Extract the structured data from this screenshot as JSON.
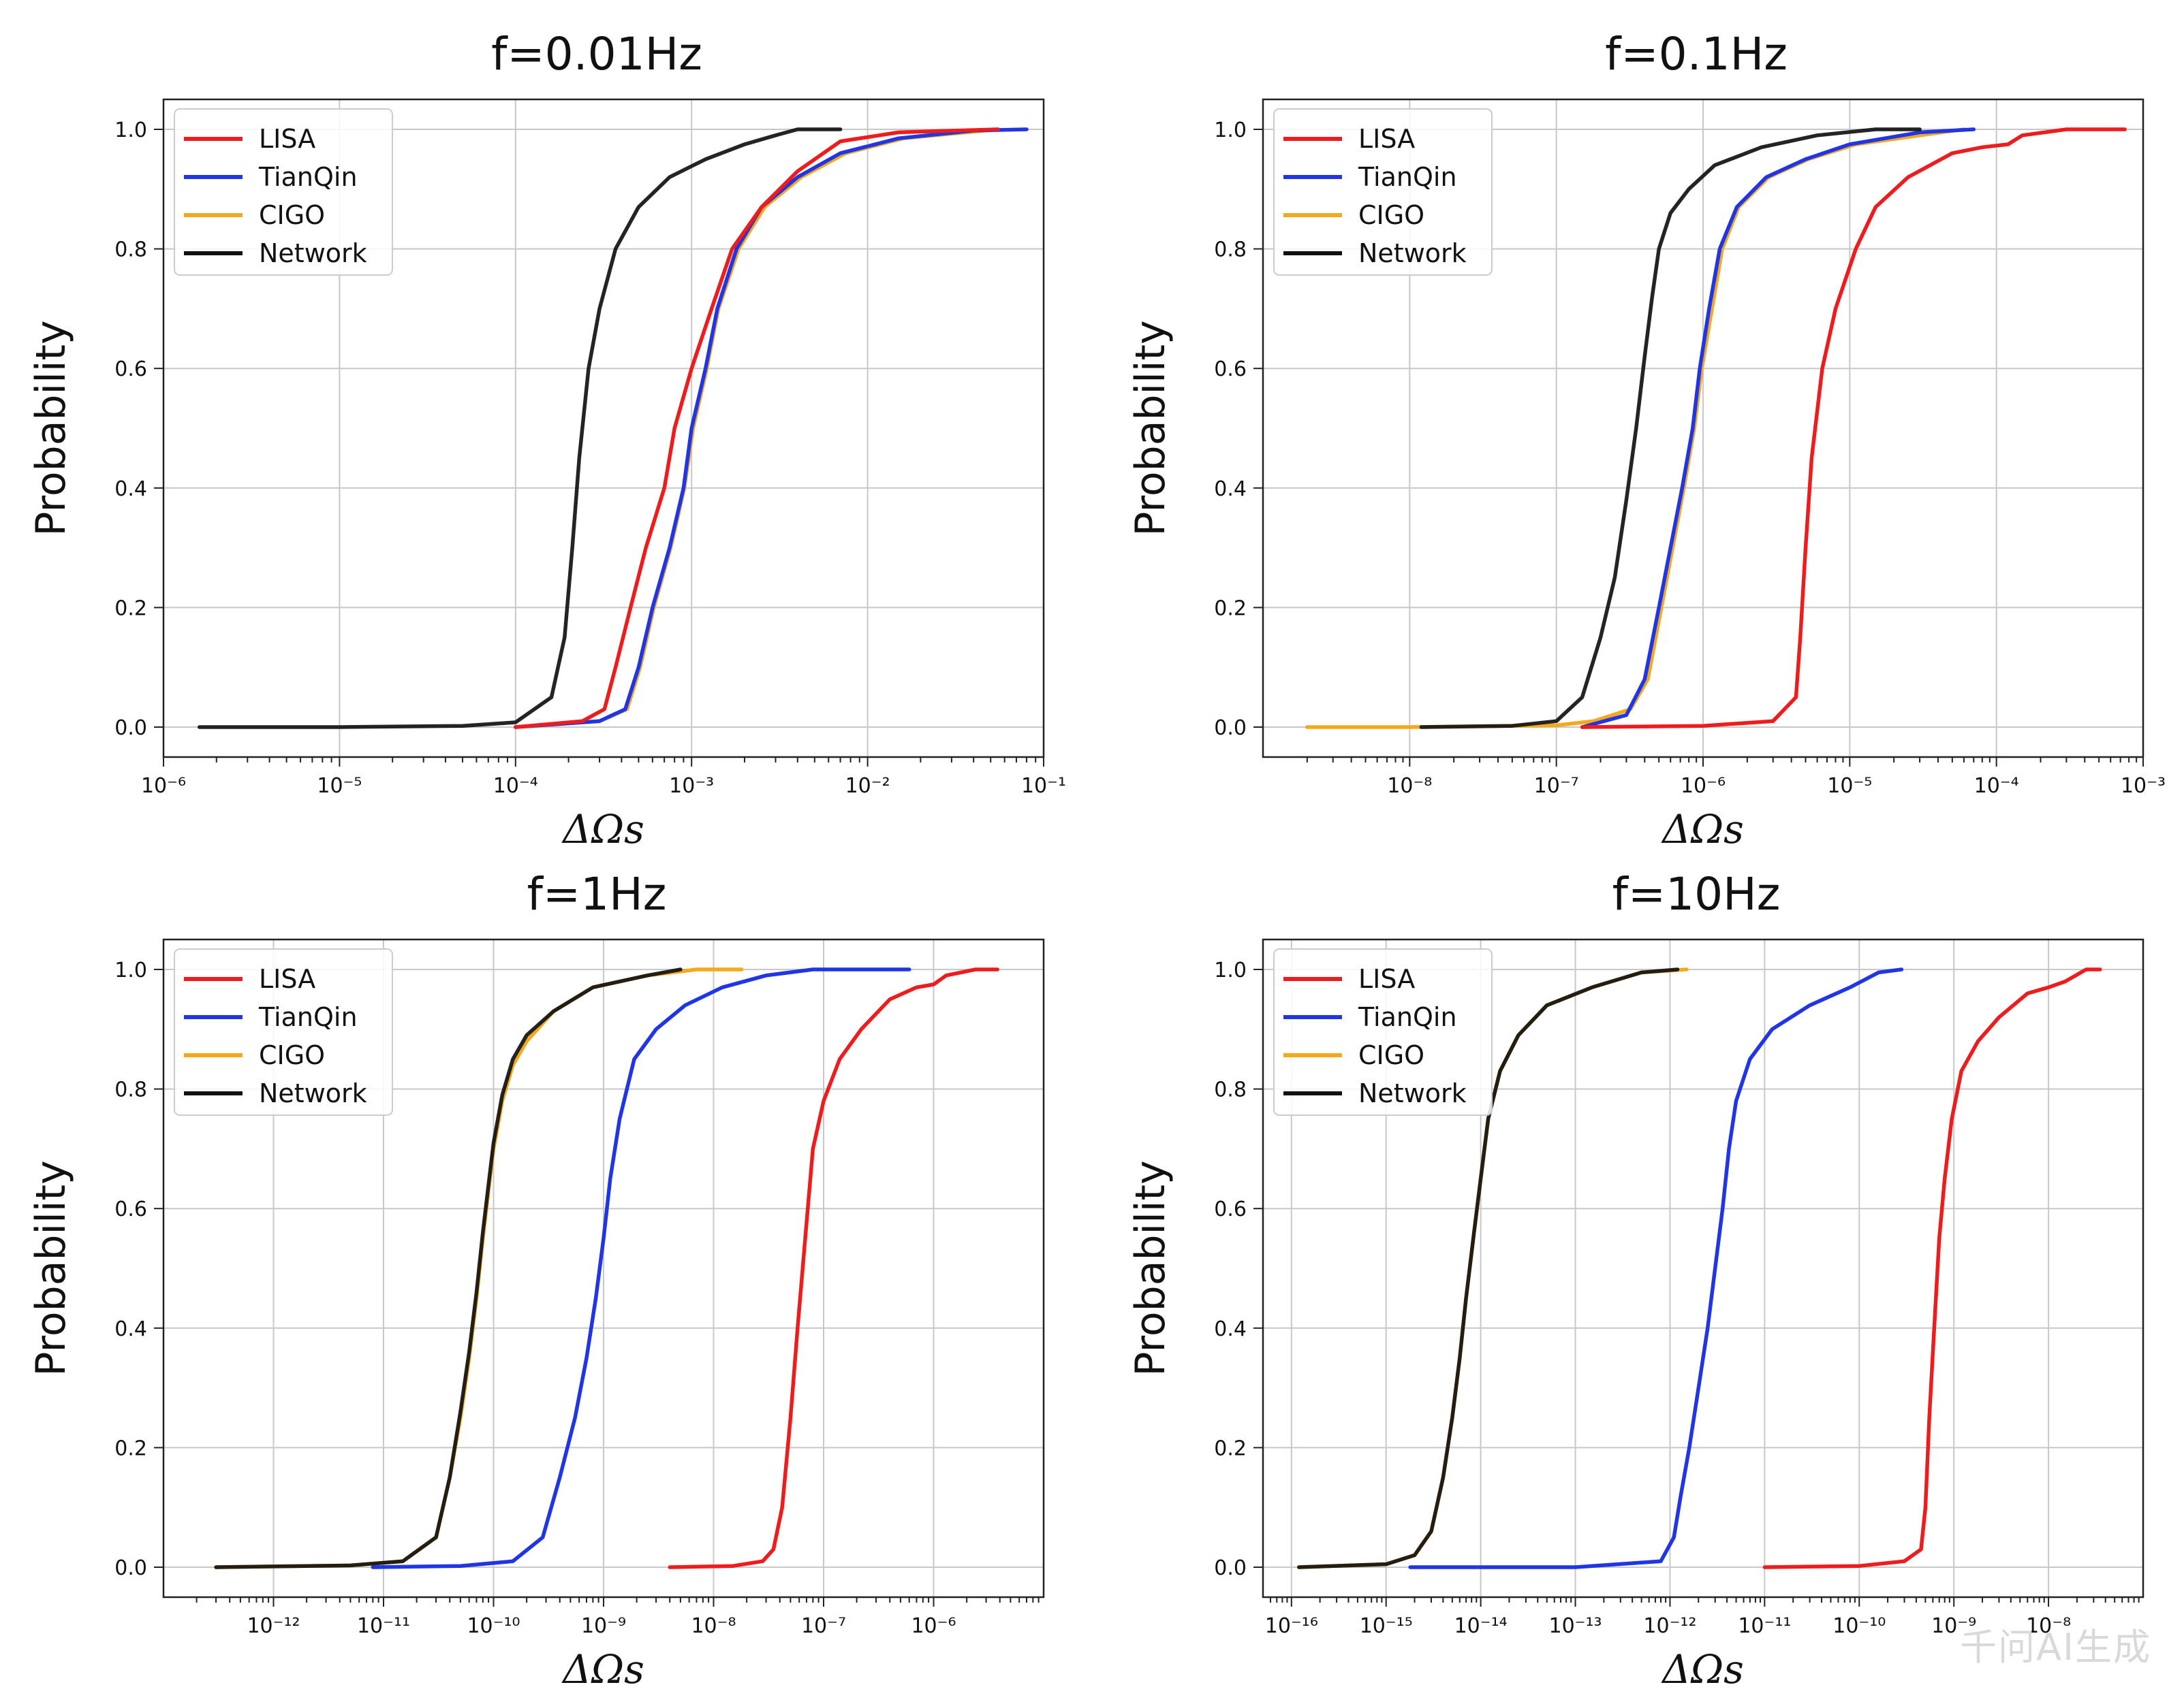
{
  "watermark": "千问AI生成",
  "colors": {
    "LISA": "#ee1c1c",
    "TianQin": "#1f35e6",
    "CIGO": "#f5a81c",
    "Network": "#111111"
  },
  "chart_data": [
    {
      "type": "line",
      "title": "f=0.01Hz",
      "xlabel": "ΔΩs",
      "ylabel": "Probability",
      "xscale": "log",
      "xlim": [
        1e-06,
        0.1
      ],
      "ylim": [
        0,
        1
      ],
      "xticks": [
        1e-06,
        1e-05,
        0.0001,
        0.001,
        0.01,
        0.1
      ],
      "xtick_labels": [
        "10⁻⁶",
        "10⁻⁵",
        "10⁻⁴",
        "10⁻³",
        "10⁻²",
        "10⁻¹"
      ],
      "yticks": [
        0.0,
        0.2,
        0.4,
        0.6,
        0.8,
        1.0
      ],
      "ytick_labels": [
        "0.0",
        "0.2",
        "0.4",
        "0.6",
        "0.8",
        "1.0"
      ],
      "grid": true,
      "legend": "top-left",
      "series": [
        {
          "name": "LISA",
          "x": [
            0.0001,
            0.00024,
            0.00032,
            0.00037,
            0.00045,
            0.00055,
            0.0007,
            0.0008,
            0.001,
            0.0013,
            0.0017,
            0.0025,
            0.004,
            0.007,
            0.015,
            0.055
          ],
          "y": [
            0,
            0.01,
            0.03,
            0.1,
            0.2,
            0.3,
            0.4,
            0.5,
            0.6,
            0.7,
            0.8,
            0.87,
            0.93,
            0.98,
            0.995,
            1.0
          ]
        },
        {
          "name": "TianQin",
          "x": [
            0.0001,
            0.0003,
            0.00042,
            0.0005,
            0.0006,
            0.00075,
            0.0009,
            0.001,
            0.0012,
            0.0014,
            0.0018,
            0.0025,
            0.004,
            0.007,
            0.015,
            0.04,
            0.08
          ],
          "y": [
            0,
            0.01,
            0.03,
            0.1,
            0.2,
            0.3,
            0.4,
            0.5,
            0.6,
            0.7,
            0.8,
            0.87,
            0.92,
            0.96,
            0.985,
            0.998,
            1.0
          ]
        },
        {
          "name": "CIGO",
          "x": [
            0.0001,
            0.0003,
            0.00043,
            0.00051,
            0.00061,
            0.00076,
            0.00091,
            0.00102,
            0.00122,
            0.00142,
            0.00185,
            0.0026,
            0.0042,
            0.0075,
            0.016,
            0.055
          ],
          "y": [
            0,
            0.01,
            0.03,
            0.1,
            0.2,
            0.3,
            0.4,
            0.5,
            0.6,
            0.7,
            0.8,
            0.87,
            0.92,
            0.96,
            0.985,
            1.0
          ]
        },
        {
          "name": "Network",
          "x": [
            1.6e-06,
            1e-05,
            5e-05,
            0.0001,
            0.00016,
            0.00019,
            0.00021,
            0.00023,
            0.00026,
            0.0003,
            0.00037,
            0.0005,
            0.00075,
            0.0012,
            0.002,
            0.003,
            0.004,
            0.007
          ],
          "y": [
            0,
            0,
            0.002,
            0.008,
            0.05,
            0.15,
            0.3,
            0.45,
            0.6,
            0.7,
            0.8,
            0.87,
            0.92,
            0.95,
            0.975,
            0.99,
            1.0,
            1.0
          ]
        }
      ]
    },
    {
      "type": "line",
      "title": "f=0.1Hz",
      "xlabel": "ΔΩs",
      "ylabel": "Probability",
      "xscale": "log",
      "xlim": [
        1e-09,
        0.001
      ],
      "ylim": [
        0,
        1
      ],
      "xticks": [
        1e-08,
        1e-07,
        1e-06,
        1e-05,
        0.0001,
        0.001
      ],
      "xtick_labels": [
        "10⁻⁸",
        "10⁻⁷",
        "10⁻⁶",
        "10⁻⁵",
        "10⁻⁴",
        "10⁻³"
      ],
      "yticks": [
        0.0,
        0.2,
        0.4,
        0.6,
        0.8,
        1.0
      ],
      "ytick_labels": [
        "0.0",
        "0.2",
        "0.4",
        "0.6",
        "0.8",
        "1.0"
      ],
      "grid": true,
      "legend": "top-left",
      "series": [
        {
          "name": "LISA",
          "x": [
            1.5e-07,
            1e-06,
            3e-06,
            4.3e-06,
            4.6e-06,
            5e-06,
            5.5e-06,
            6.5e-06,
            8e-06,
            1.1e-05,
            1.5e-05,
            2.5e-05,
            5e-05,
            8e-05,
            0.00012,
            0.00015,
            0.0003,
            0.00075
          ],
          "y": [
            0,
            0.002,
            0.01,
            0.05,
            0.15,
            0.3,
            0.45,
            0.6,
            0.7,
            0.8,
            0.87,
            0.92,
            0.96,
            0.97,
            0.975,
            0.99,
            1.0,
            1.0
          ]
        },
        {
          "name": "TianQin",
          "x": [
            1.5e-07,
            3e-07,
            4e-07,
            5e-07,
            6e-07,
            7.2e-07,
            8.5e-07,
            9.5e-07,
            1.1e-06,
            1.3e-06,
            1.7e-06,
            2.7e-06,
            5e-06,
            1e-05,
            3e-05,
            7e-05
          ],
          "y": [
            0,
            0.02,
            0.08,
            0.2,
            0.3,
            0.4,
            0.5,
            0.6,
            0.7,
            0.8,
            0.87,
            0.92,
            0.95,
            0.975,
            0.995,
            1.0
          ]
        },
        {
          "name": "CIGO",
          "x": [
            2e-09,
            1e-08,
            1e-07,
            1.8e-07,
            3.2e-07,
            4.2e-07,
            5.2e-07,
            6.2e-07,
            7.4e-07,
            8.7e-07,
            9.8e-07,
            1.15e-06,
            1.35e-06,
            1.75e-06,
            2.8e-06,
            5.2e-06,
            1.1e-05,
            3e-05,
            6e-05
          ],
          "y": [
            0,
            0,
            0.003,
            0.01,
            0.03,
            0.08,
            0.2,
            0.3,
            0.4,
            0.5,
            0.6,
            0.7,
            0.8,
            0.87,
            0.92,
            0.95,
            0.975,
            0.99,
            1.0
          ]
        },
        {
          "name": "Network",
          "x": [
            1.2e-08,
            5e-08,
            1e-07,
            1.5e-07,
            2e-07,
            2.5e-07,
            3e-07,
            3.5e-07,
            4e-07,
            4.5e-07,
            5e-07,
            6e-07,
            8e-07,
            1.2e-06,
            2.5e-06,
            6e-06,
            1.5e-05,
            3e-05
          ],
          "y": [
            0,
            0.002,
            0.01,
            0.05,
            0.15,
            0.25,
            0.38,
            0.5,
            0.62,
            0.72,
            0.8,
            0.86,
            0.9,
            0.94,
            0.97,
            0.99,
            1.0,
            1.0
          ]
        }
      ]
    },
    {
      "type": "line",
      "title": "f=1Hz",
      "xlabel": "ΔΩs",
      "ylabel": "Probability",
      "xscale": "log",
      "xlim": [
        1e-13,
        1e-05
      ],
      "ylim": [
        0,
        1
      ],
      "xticks": [
        1e-12,
        1e-11,
        1e-10,
        1e-09,
        1e-08,
        1e-07,
        1e-06
      ],
      "xtick_labels": [
        "10⁻¹²",
        "10⁻¹¹",
        "10⁻¹⁰",
        "10⁻⁹",
        "10⁻⁸",
        "10⁻⁷",
        "10⁻⁶"
      ],
      "yticks": [
        0.0,
        0.2,
        0.4,
        0.6,
        0.8,
        1.0
      ],
      "ytick_labels": [
        "0.0",
        "0.2",
        "0.4",
        "0.6",
        "0.8",
        "1.0"
      ],
      "grid": true,
      "legend": "top-left",
      "series": [
        {
          "name": "LISA",
          "x": [
            4e-09,
            1.5e-08,
            2.8e-08,
            3.5e-08,
            4.2e-08,
            5e-08,
            5.8e-08,
            6.8e-08,
            8e-08,
            1e-07,
            1.4e-07,
            2.2e-07,
            4e-07,
            7e-07,
            1e-06,
            1.3e-06,
            2.4e-06,
            3.8e-06
          ],
          "y": [
            0,
            0.002,
            0.01,
            0.03,
            0.1,
            0.25,
            0.4,
            0.55,
            0.7,
            0.78,
            0.85,
            0.9,
            0.95,
            0.97,
            0.975,
            0.99,
            1.0,
            1.0
          ]
        },
        {
          "name": "TianQin",
          "x": [
            8e-12,
            5e-11,
            1.5e-10,
            2.8e-10,
            4e-10,
            5.5e-10,
            7e-10,
            8.5e-10,
            1e-09,
            1.15e-09,
            1.4e-09,
            1.9e-09,
            3e-09,
            5.5e-09,
            1.2e-08,
            3e-08,
            8e-08,
            6e-07
          ],
          "y": [
            0,
            0.002,
            0.01,
            0.05,
            0.15,
            0.25,
            0.35,
            0.45,
            0.55,
            0.65,
            0.75,
            0.85,
            0.9,
            0.94,
            0.97,
            0.99,
            1.0,
            1.0
          ]
        },
        {
          "name": "CIGO",
          "x": [
            3e-13,
            5e-12,
            1.5e-11,
            3e-11,
            4e-11,
            5e-11,
            6e-11,
            7e-11,
            8e-11,
            9e-11,
            1e-10,
            1.2e-10,
            1.5e-10,
            2e-10,
            3.5e-10,
            8e-10,
            2.5e-09,
            7e-09,
            1.8e-08
          ],
          "y": [
            0,
            0.003,
            0.01,
            0.05,
            0.15,
            0.25,
            0.35,
            0.45,
            0.55,
            0.63,
            0.7,
            0.78,
            0.84,
            0.88,
            0.93,
            0.97,
            0.99,
            1.0,
            1.0
          ]
        },
        {
          "name": "Network",
          "x": [
            3e-13,
            5e-12,
            1.5e-11,
            3e-11,
            4e-11,
            5e-11,
            6e-11,
            7e-11,
            8e-11,
            9e-11,
            1e-10,
            1.2e-10,
            1.5e-10,
            2e-10,
            3.5e-10,
            8e-10,
            2.5e-09,
            5e-09
          ],
          "y": [
            0,
            0.003,
            0.01,
            0.05,
            0.15,
            0.26,
            0.36,
            0.46,
            0.56,
            0.64,
            0.71,
            0.79,
            0.85,
            0.89,
            0.93,
            0.97,
            0.99,
            1.0
          ]
        }
      ]
    },
    {
      "type": "line",
      "title": "f=10Hz",
      "xlabel": "ΔΩs",
      "ylabel": "Probability",
      "xscale": "log",
      "xlim": [
        5e-17,
        1e-07
      ],
      "ylim": [
        0,
        1
      ],
      "xticks": [
        1e-16,
        1e-15,
        1e-14,
        1e-13,
        1e-12,
        1e-11,
        1e-10,
        1e-09,
        1e-08
      ],
      "xtick_labels": [
        "10⁻¹⁶",
        "10⁻¹⁵",
        "10⁻¹⁴",
        "10⁻¹³",
        "10⁻¹²",
        "10⁻¹¹",
        "10⁻¹⁰",
        "10⁻⁹",
        "10⁻⁸"
      ],
      "yticks": [
        0.0,
        0.2,
        0.4,
        0.6,
        0.8,
        1.0
      ],
      "ytick_labels": [
        "0.0",
        "0.2",
        "0.4",
        "0.6",
        "0.8",
        "1.0"
      ],
      "grid": true,
      "legend": "top-left",
      "series": [
        {
          "name": "LISA",
          "x": [
            1e-11,
            1e-10,
            3e-10,
            4.5e-10,
            5e-10,
            5.5e-10,
            6.2e-10,
            7e-10,
            8e-10,
            9.5e-10,
            1.2e-09,
            1.8e-09,
            3e-09,
            6e-09,
            1e-08,
            1.5e-08,
            2.5e-08,
            3.5e-08
          ],
          "y": [
            0,
            0.002,
            0.01,
            0.03,
            0.1,
            0.25,
            0.4,
            0.55,
            0.65,
            0.75,
            0.83,
            0.88,
            0.92,
            0.96,
            0.97,
            0.98,
            1.0,
            1.0
          ]
        },
        {
          "name": "TianQin",
          "x": [
            1.8e-15,
            1e-13,
            8e-13,
            1.1e-12,
            1.3e-12,
            1.6e-12,
            2e-12,
            2.5e-12,
            3e-12,
            3.6e-12,
            4.2e-12,
            5e-12,
            7e-12,
            1.2e-11,
            3e-11,
            8e-11,
            1.6e-10,
            2.8e-10
          ],
          "y": [
            0,
            0,
            0.01,
            0.05,
            0.12,
            0.2,
            0.3,
            0.4,
            0.5,
            0.6,
            0.7,
            0.78,
            0.85,
            0.9,
            0.94,
            0.97,
            0.995,
            1.0
          ]
        },
        {
          "name": "CIGO",
          "x": [
            1.2e-16,
            1e-15,
            2e-15,
            3e-15,
            4e-15,
            5e-15,
            6e-15,
            7e-15,
            8.5e-15,
            1e-14,
            1.2e-14,
            1.6e-14,
            2.5e-14,
            5e-14,
            1.5e-13,
            5e-13,
            1.5e-12
          ],
          "y": [
            0,
            0.005,
            0.02,
            0.06,
            0.15,
            0.25,
            0.35,
            0.45,
            0.56,
            0.65,
            0.75,
            0.83,
            0.89,
            0.94,
            0.97,
            0.995,
            1.0
          ]
        },
        {
          "name": "Network",
          "x": [
            1.2e-16,
            1e-15,
            2e-15,
            3e-15,
            4e-15,
            5e-15,
            6e-15,
            7e-15,
            8.5e-15,
            1e-14,
            1.2e-14,
            1.6e-14,
            2.5e-14,
            5e-14,
            1.5e-13,
            5e-13,
            1.2e-12
          ],
          "y": [
            0,
            0.005,
            0.02,
            0.06,
            0.15,
            0.25,
            0.35,
            0.45,
            0.56,
            0.65,
            0.75,
            0.83,
            0.89,
            0.94,
            0.97,
            0.995,
            1.0
          ]
        }
      ]
    }
  ]
}
